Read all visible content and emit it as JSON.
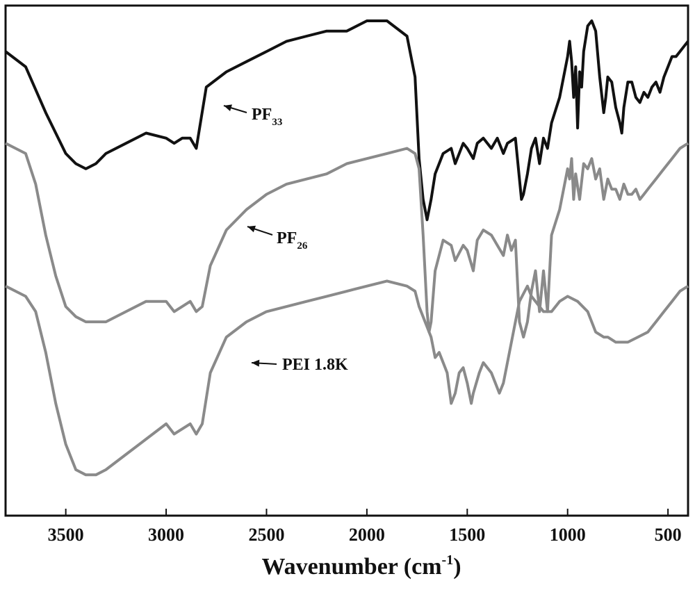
{
  "chart_data": {
    "type": "line",
    "title": "",
    "xlabel": {
      "main": "Wavenumber (cm",
      "sup": "-1",
      "close": ")"
    },
    "ylabel": "",
    "xlim": [
      3800,
      400
    ],
    "x_reversed": true,
    "y_ticks_shown": false,
    "grid": false,
    "legend": "none",
    "x_ticks": [
      3500,
      3000,
      2500,
      2000,
      1500,
      1000,
      500
    ],
    "x_tick_labels": [
      "3500",
      "3000",
      "2500",
      "2000",
      "1500",
      "1000",
      "500"
    ],
    "y_unit_note": "transmittance, arbitrary units, curves vertically offset",
    "ylim": [
      0,
      100
    ],
    "series": [
      {
        "name": "PF33",
        "color": "#111111",
        "x": [
          3800,
          3700,
          3600,
          3500,
          3450,
          3400,
          3350,
          3300,
          3200,
          3100,
          3000,
          2960,
          2920,
          2880,
          2850,
          2800,
          2700,
          2600,
          2500,
          2400,
          2300,
          2200,
          2100,
          2000,
          1900,
          1800,
          1760,
          1740,
          1720,
          1700,
          1680,
          1660,
          1620,
          1580,
          1560,
          1520,
          1500,
          1470,
          1450,
          1420,
          1380,
          1350,
          1320,
          1300,
          1260,
          1240,
          1230,
          1220,
          1200,
          1180,
          1160,
          1140,
          1120,
          1100,
          1080,
          1040,
          1000,
          990,
          980,
          970,
          960,
          950,
          940,
          930,
          920,
          900,
          880,
          860,
          840,
          820,
          810,
          800,
          780,
          760,
          740,
          730,
          720,
          700,
          680,
          660,
          640,
          620,
          600,
          580,
          560,
          540,
          520,
          500,
          480,
          460,
          440,
          420,
          400
        ],
        "y": [
          91,
          88,
          79,
          71,
          69,
          68,
          69,
          71,
          73,
          75,
          74,
          73,
          74,
          74,
          72,
          84,
          87,
          89,
          91,
          93,
          94,
          95,
          95,
          97,
          97,
          94,
          86,
          70,
          62,
          58,
          62,
          67,
          71,
          72,
          69,
          73,
          72,
          70,
          73,
          74,
          72,
          74,
          71,
          73,
          74,
          66,
          62,
          63,
          67,
          72,
          74,
          69,
          74,
          72,
          77,
          82,
          90,
          93,
          89,
          82,
          88,
          76,
          87,
          84,
          91,
          96,
          97,
          95,
          86,
          79,
          82,
          86,
          85,
          80,
          77,
          75,
          80,
          85,
          85,
          82,
          81,
          83,
          82,
          84,
          85,
          83,
          86,
          88,
          90,
          90,
          91,
          92,
          93
        ]
      },
      {
        "name": "PF26",
        "color": "#8a8a8a",
        "x": [
          3800,
          3750,
          3700,
          3650,
          3600,
          3550,
          3500,
          3450,
          3400,
          3350,
          3300,
          3200,
          3100,
          3000,
          2960,
          2920,
          2880,
          2850,
          2820,
          2780,
          2700,
          2600,
          2500,
          2400,
          2300,
          2200,
          2100,
          2000,
          1900,
          1800,
          1760,
          1740,
          1720,
          1700,
          1690,
          1680,
          1660,
          1620,
          1580,
          1560,
          1520,
          1500,
          1470,
          1450,
          1420,
          1380,
          1350,
          1320,
          1300,
          1280,
          1260,
          1240,
          1220,
          1200,
          1180,
          1160,
          1140,
          1120,
          1100,
          1080,
          1040,
          1000,
          990,
          980,
          970,
          960,
          940,
          920,
          900,
          880,
          860,
          840,
          820,
          800,
          780,
          760,
          740,
          720,
          700,
          680,
          660,
          640,
          620,
          600,
          560,
          520,
          480,
          440,
          400
        ],
        "y": [
          73,
          72,
          71,
          65,
          55,
          47,
          41,
          39,
          38,
          38,
          38,
          40,
          42,
          42,
          40,
          41,
          42,
          40,
          41,
          49,
          56,
          60,
          63,
          65,
          66,
          67,
          69,
          70,
          71,
          72,
          71,
          68,
          55,
          40,
          36,
          38,
          48,
          54,
          53,
          50,
          53,
          52,
          48,
          54,
          56,
          55,
          53,
          51,
          55,
          52,
          54,
          38,
          35,
          38,
          44,
          48,
          40,
          48,
          40,
          55,
          60,
          68,
          66,
          70,
          62,
          67,
          62,
          69,
          68,
          70,
          66,
          68,
          62,
          66,
          64,
          64,
          62,
          65,
          63,
          63,
          64,
          62,
          63,
          64,
          66,
          68,
          70,
          72,
          73
        ]
      },
      {
        "name": "PEI 1.8K",
        "color": "#8a8a8a",
        "x": [
          3800,
          3750,
          3700,
          3650,
          3600,
          3550,
          3500,
          3450,
          3400,
          3350,
          3300,
          3200,
          3100,
          3000,
          2960,
          2920,
          2880,
          2850,
          2820,
          2780,
          2700,
          2600,
          2500,
          2400,
          2300,
          2200,
          2100,
          2000,
          1900,
          1800,
          1760,
          1740,
          1700,
          1680,
          1660,
          1640,
          1600,
          1580,
          1560,
          1540,
          1520,
          1500,
          1480,
          1470,
          1440,
          1420,
          1380,
          1340,
          1320,
          1300,
          1260,
          1240,
          1200,
          1180,
          1160,
          1120,
          1080,
          1040,
          1000,
          950,
          900,
          860,
          820,
          800,
          760,
          700,
          650,
          600,
          560,
          520,
          480,
          440,
          400
        ],
        "y": [
          45,
          44,
          43,
          40,
          32,
          22,
          14,
          9,
          8,
          8,
          9,
          12,
          15,
          18,
          16,
          17,
          18,
          16,
          18,
          28,
          35,
          38,
          40,
          41,
          42,
          43,
          44,
          45,
          46,
          45,
          44,
          41,
          37,
          35,
          31,
          32,
          28,
          22,
          24,
          28,
          29,
          26,
          22,
          24,
          28,
          30,
          28,
          24,
          26,
          30,
          38,
          42,
          45,
          43,
          42,
          40,
          40,
          42,
          43,
          42,
          40,
          36,
          35,
          35,
          34,
          34,
          35,
          36,
          38,
          40,
          42,
          44,
          45
        ]
      }
    ],
    "annotations": [
      {
        "label": "PF",
        "sub": "33",
        "series": "PF33"
      },
      {
        "label": "PF",
        "sub": "26",
        "series": "PF26"
      },
      {
        "label": "PEI 1.8K",
        "sub": "",
        "series": "PEI 1.8K"
      }
    ]
  }
}
